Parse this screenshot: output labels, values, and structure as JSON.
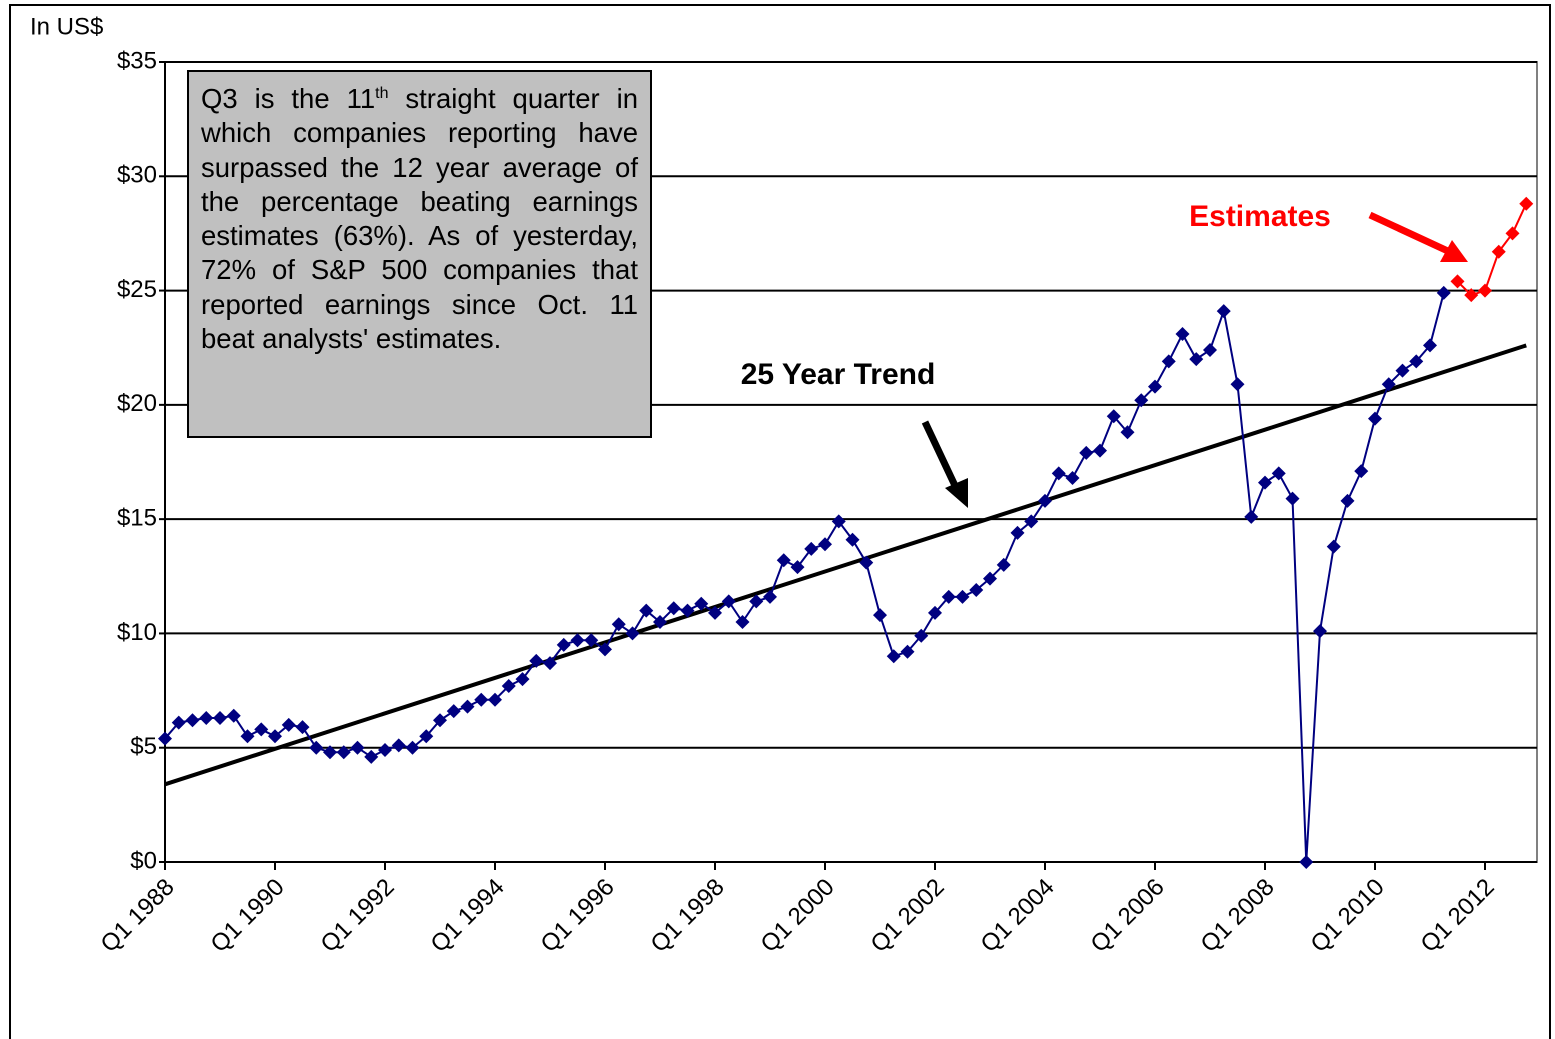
{
  "chart_data": {
    "type": "line",
    "y_axis_label": "In US$",
    "annotation": {
      "before": "Q3 is the 11",
      "sup": "th",
      "after": " straight quarter in which companies reporting have surpassed the 12 year average of the percentage beating earnings estimates (63%). As of yesterday, 72% of S&P 500 companies that reported earnings since Oct. 11 beat analysts' estimates."
    },
    "categories": [
      "Q1 1988",
      null,
      null,
      null,
      null,
      null,
      null,
      null,
      "Q1 1990",
      null,
      null,
      null,
      null,
      null,
      null,
      null,
      "Q1 1992",
      null,
      null,
      null,
      null,
      null,
      null,
      null,
      "Q1 1994",
      null,
      null,
      null,
      null,
      null,
      null,
      null,
      "Q1 1996",
      null,
      null,
      null,
      null,
      null,
      null,
      null,
      "Q1 1998",
      null,
      null,
      null,
      null,
      null,
      null,
      null,
      "Q1 2000",
      null,
      null,
      null,
      null,
      null,
      null,
      null,
      "Q1 2002",
      null,
      null,
      null,
      null,
      null,
      null,
      null,
      "Q1 2004",
      null,
      null,
      null,
      null,
      null,
      null,
      null,
      "Q1 2006",
      null,
      null,
      null,
      null,
      null,
      null,
      null,
      "Q1 2008",
      null,
      null,
      null,
      null,
      null,
      null,
      null,
      "Q1 2010",
      null,
      null,
      null,
      null,
      null,
      null,
      null,
      "Q1 2012",
      null,
      null,
      null
    ],
    "series": [
      {
        "color": "#000080",
        "values": [
          5.4,
          6.1,
          6.2,
          6.3,
          6.3,
          6.4,
          5.5,
          5.8,
          5.5,
          6.0,
          5.9,
          5.0,
          4.8,
          4.8,
          5.0,
          4.6,
          4.9,
          5.1,
          5.0,
          5.5,
          6.2,
          6.6,
          6.8,
          7.1,
          7.1,
          7.7,
          8.0,
          8.8,
          8.7,
          9.5,
          9.7,
          9.7,
          9.3,
          10.4,
          10.0,
          11.0,
          10.5,
          11.1,
          11.0,
          11.3,
          10.9,
          11.4,
          10.5,
          11.4,
          11.6,
          13.2,
          12.9,
          13.7,
          13.9,
          14.9,
          14.1,
          13.1,
          10.8,
          9.0,
          9.2,
          9.9,
          10.9,
          11.6,
          11.6,
          11.9,
          12.4,
          13.0,
          14.4,
          14.9,
          15.8,
          17.0,
          16.8,
          17.9,
          18.0,
          19.5,
          18.8,
          20.2,
          20.8,
          21.9,
          23.1,
          22.0,
          22.4,
          24.1,
          20.9,
          15.1,
          16.6,
          17.0,
          15.9,
          0,
          10.1,
          13.8,
          15.8,
          17.1,
          19.4,
          20.9,
          21.5,
          21.9,
          22.6,
          24.9,
          null,
          null,
          null,
          null,
          null,
          null
        ]
      },
      {
        "name": "Estimates",
        "color": "#ff0000",
        "values": [
          null,
          null,
          null,
          null,
          null,
          null,
          null,
          null,
          null,
          null,
          null,
          null,
          null,
          null,
          null,
          null,
          null,
          null,
          null,
          null,
          null,
          null,
          null,
          null,
          null,
          null,
          null,
          null,
          null,
          null,
          null,
          null,
          null,
          null,
          null,
          null,
          null,
          null,
          null,
          null,
          null,
          null,
          null,
          null,
          null,
          null,
          null,
          null,
          null,
          null,
          null,
          null,
          null,
          null,
          null,
          null,
          null,
          null,
          null,
          null,
          null,
          null,
          null,
          null,
          null,
          null,
          null,
          null,
          null,
          null,
          null,
          null,
          null,
          null,
          null,
          null,
          null,
          null,
          null,
          null,
          null,
          null,
          null,
          null,
          null,
          null,
          null,
          null,
          null,
          null,
          null,
          null,
          null,
          null,
          25.4,
          24.8,
          25.0,
          26.7,
          27.5,
          28.8
        ]
      }
    ],
    "trend": {
      "name": "25 Year Trend",
      "color": "#000000",
      "start": 3.4,
      "end": 22.6
    },
    "ylim": [
      0,
      35
    ],
    "yticks": [
      {
        "value": 0,
        "label": "$0"
      },
      {
        "value": 5,
        "label": "$5"
      },
      {
        "value": 10,
        "label": "$10"
      },
      {
        "value": 15,
        "label": "$15"
      },
      {
        "value": 20,
        "label": "$20"
      },
      {
        "value": 25,
        "label": "$25"
      },
      {
        "value": 30,
        "label": "$30"
      },
      {
        "value": 35,
        "label": "$35"
      }
    ],
    "grid": true
  }
}
